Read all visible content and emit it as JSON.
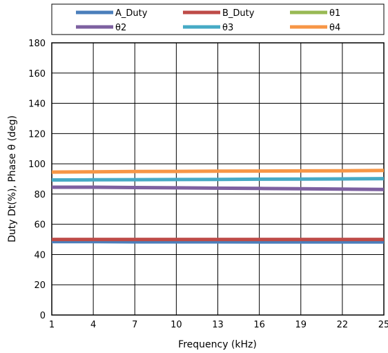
{
  "chart_data": {
    "type": "line",
    "x": [
      1,
      4,
      7,
      10,
      13,
      16,
      19,
      22,
      25
    ],
    "xlabel": "Frequency (kHz)",
    "ylabel": "Duty Dt(%), Phase θ (deg)",
    "xlim": [
      1,
      25
    ],
    "ylim": [
      0,
      180
    ],
    "xticks": [
      "1",
      "4",
      "7",
      "10",
      "13",
      "16",
      "19",
      "22",
      "25"
    ],
    "yticks": [
      "0",
      "20",
      "40",
      "60",
      "80",
      "100",
      "120",
      "140",
      "160",
      "180"
    ],
    "grid": true,
    "legend_position": "top",
    "series": [
      {
        "name": "A_Duty",
        "color": "#4A7EBB",
        "values": [
          48.5,
          48.5,
          48.4,
          48.4,
          48.4,
          48.3,
          48.3,
          48.3,
          48.3
        ]
      },
      {
        "name": "B_Duty",
        "color": "#BE4B48",
        "values": [
          50,
          50,
          50,
          50,
          50,
          50,
          50,
          50,
          50
        ]
      },
      {
        "name": "θ1",
        "color": "#98B954",
        "values": [
          null,
          null,
          null,
          null,
          null,
          null,
          null,
          null,
          null
        ]
      },
      {
        "name": "θ2",
        "color": "#7D60A0",
        "values": [
          84.5,
          84.5,
          84.3,
          84.1,
          83.9,
          83.7,
          83.5,
          83.3,
          83
        ]
      },
      {
        "name": "θ3",
        "color": "#46AAC5",
        "values": [
          89.3,
          89.4,
          89.5,
          89.6,
          89.7,
          89.8,
          89.9,
          90.0,
          90.2
        ]
      },
      {
        "name": "θ4",
        "color": "#F79646",
        "values": [
          94.5,
          94.7,
          94.9,
          95.0,
          95.1,
          95.2,
          95.3,
          95.4,
          95.6
        ]
      }
    ]
  }
}
